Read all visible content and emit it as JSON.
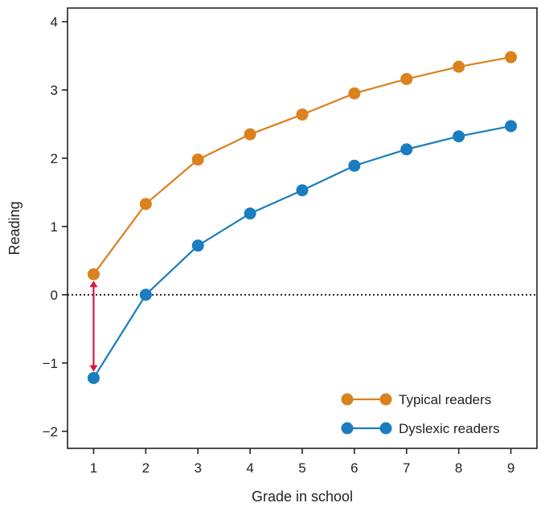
{
  "chart_data": {
    "type": "line",
    "xlabel": "Grade in school",
    "ylabel": "Reading",
    "x": [
      1,
      2,
      3,
      4,
      5,
      6,
      7,
      8,
      9
    ],
    "xlim": [
      0.5,
      9.5
    ],
    "ylim": [
      -2.25,
      4.2
    ],
    "xticks": [
      "1",
      "2",
      "3",
      "4",
      "5",
      "6",
      "7",
      "8",
      "9"
    ],
    "yticks": [
      {
        "value": 4,
        "label": "4"
      },
      {
        "value": 3,
        "label": "3"
      },
      {
        "value": 2,
        "label": "2"
      },
      {
        "value": 1,
        "label": "1"
      },
      {
        "value": 0,
        "label": "0"
      },
      {
        "value": -1,
        "label": "−1"
      },
      {
        "value": -2,
        "label": "−2"
      }
    ],
    "reference_line": {
      "y": 0,
      "style": "dotted"
    },
    "gap_arrow": {
      "x": 1,
      "from": -1.22,
      "to": 0.3,
      "color": "#d7193f"
    },
    "grid": false,
    "legend_position": "bottom-right",
    "series": [
      {
        "name": "Typical readers",
        "color": "#d9821e",
        "values": [
          0.3,
          1.33,
          1.98,
          2.35,
          2.64,
          2.95,
          3.16,
          3.34,
          3.48
        ]
      },
      {
        "name": "Dyslexic readers",
        "color": "#1a7dc0",
        "values": [
          -1.22,
          0.0,
          0.72,
          1.19,
          1.53,
          1.89,
          2.13,
          2.32,
          2.47
        ]
      }
    ]
  }
}
